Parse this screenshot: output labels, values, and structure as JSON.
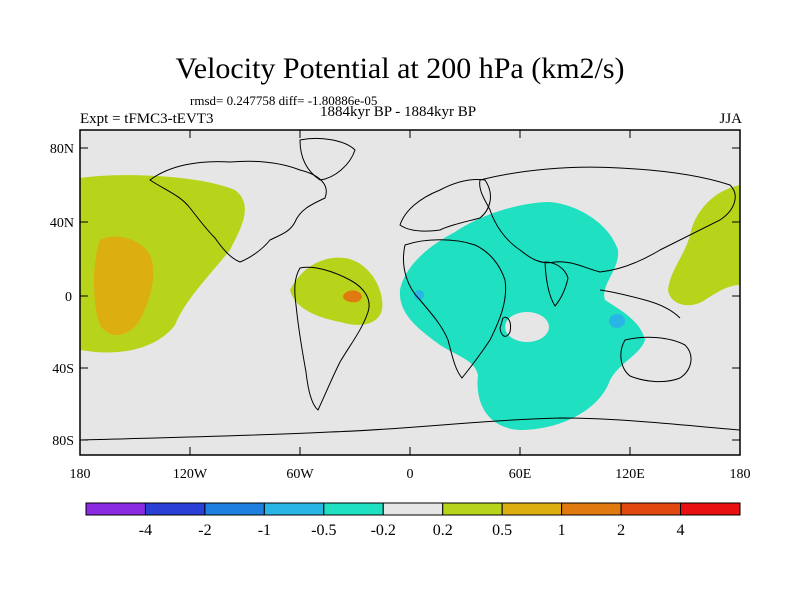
{
  "title": "Velocity Potential at 200 hPa (km2/s)",
  "stats": "rmsd= 0.247758 diff= -1.80886e-05",
  "experiment": "Expt = tFMC3-tEVT3",
  "period": "1884kyr BP - 1884kyr BP",
  "season": "JJA",
  "lat_ticks": [
    "80N",
    "40N",
    "0",
    "40S",
    "80S"
  ],
  "lon_ticks": [
    "180",
    "120W",
    "60W",
    "0",
    "60E",
    "120E",
    "180"
  ],
  "colorbar": {
    "labels": [
      "-4",
      "-2",
      "-1",
      "-0.5",
      "-0.2",
      "0.2",
      "0.5",
      "1",
      "2",
      "4"
    ],
    "colors": [
      "#8a2be2",
      "#2a3fd6",
      "#1e7fe0",
      "#29b6e6",
      "#1fe0c0",
      "#e6e6e6",
      "#b8d41a",
      "#dcae10",
      "#e07a10",
      "#e04810",
      "#e81010"
    ]
  },
  "colors": {
    "background": "#e6e6e6",
    "positive_small": "#b8d41a",
    "positive_mid": "#dcae10",
    "positive_large": "#e07a10",
    "negative_small": "#1fe0c0",
    "negative_mid": "#29b6e6"
  }
}
